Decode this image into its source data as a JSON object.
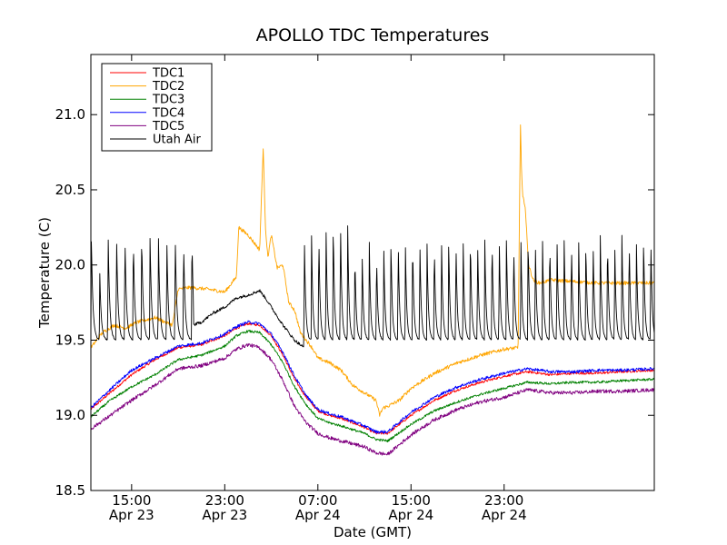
{
  "chart_data": {
    "type": "line",
    "title": "APOLLO TDC Temperatures",
    "xlabel": "Date (GMT)",
    "ylabel": "Temperature (C)",
    "xlim": [
      11.5,
      59.9
    ],
    "ylim": [
      18.5,
      21.4
    ],
    "x_unit": "hours since Apr 23 00:00 GMT",
    "x_ticks": [
      {
        "value": 15,
        "line1": "15:00",
        "line2": "Apr 23"
      },
      {
        "value": 23,
        "line1": "23:00",
        "line2": "Apr 23"
      },
      {
        "value": 31,
        "line1": "07:00",
        "line2": "Apr 24"
      },
      {
        "value": 39,
        "line1": "15:00",
        "line2": "Apr 24"
      },
      {
        "value": 47,
        "line1": "23:00",
        "line2": "Apr 24"
      }
    ],
    "y_ticks": [
      {
        "value": 18.5,
        "label": "18.5"
      },
      {
        "value": 19.0,
        "label": "19.0"
      },
      {
        "value": 19.5,
        "label": "19.5"
      },
      {
        "value": 20.0,
        "label": "20.0"
      },
      {
        "value": 20.5,
        "label": "20.5"
      },
      {
        "value": 21.0,
        "label": "21.0"
      }
    ],
    "legend_position": "top-left",
    "series": [
      {
        "name": "TDC1",
        "color": "#ff0000",
        "x": [
          11.5,
          13,
          15,
          17,
          19,
          21,
          23,
          24,
          25,
          26,
          27,
          28,
          29,
          30,
          31,
          32,
          33,
          35,
          36,
          37,
          39,
          41,
          43,
          45,
          47,
          49,
          51,
          53,
          55,
          57,
          59.9
        ],
        "y": [
          19.04,
          19.14,
          19.27,
          19.37,
          19.45,
          19.47,
          19.53,
          19.58,
          19.61,
          19.6,
          19.53,
          19.4,
          19.24,
          19.12,
          19.03,
          19.0,
          18.98,
          18.92,
          18.88,
          18.88,
          19.0,
          19.1,
          19.17,
          19.22,
          19.26,
          19.29,
          19.27,
          19.28,
          19.28,
          19.29,
          19.3
        ],
        "noise": 0.008
      },
      {
        "name": "TDC2",
        "color": "#ffa500",
        "x": [
          11.5,
          12.5,
          13.5,
          14.5,
          15.5,
          17,
          18.5,
          19,
          20,
          21.5,
          23,
          24,
          24.2,
          25,
          26,
          26.3,
          26.5,
          26.7,
          27,
          27.5,
          28,
          28.5,
          29,
          29.5,
          30,
          30.5,
          31,
          32,
          33,
          34,
          35,
          36,
          36.3,
          36.6,
          37,
          38,
          39,
          41,
          43,
          45,
          47,
          48.2,
          48.4,
          48.5,
          48.6,
          48.8,
          49.1,
          49.5,
          50,
          51,
          53,
          55,
          57,
          59.9
        ],
        "y": [
          19.45,
          19.55,
          19.6,
          19.58,
          19.62,
          19.65,
          19.6,
          19.84,
          19.85,
          19.84,
          19.82,
          19.92,
          20.25,
          20.2,
          20.1,
          20.78,
          20.25,
          20.05,
          20.2,
          19.98,
          20.0,
          19.75,
          19.7,
          19.55,
          19.5,
          19.45,
          19.38,
          19.35,
          19.3,
          19.2,
          19.15,
          19.1,
          19.0,
          19.05,
          19.06,
          19.1,
          19.18,
          19.28,
          19.35,
          19.4,
          19.44,
          19.45,
          20.95,
          20.6,
          20.45,
          20.4,
          20.0,
          19.9,
          19.88,
          19.9,
          19.89,
          19.88,
          19.88,
          19.88
        ],
        "noise": 0.012
      },
      {
        "name": "TDC3",
        "color": "#008000",
        "x": [
          11.5,
          13,
          15,
          17,
          19,
          21,
          23,
          24,
          25,
          26,
          27,
          28,
          29,
          30,
          31,
          32,
          33,
          35,
          36,
          37,
          39,
          41,
          43,
          45,
          47,
          49,
          51,
          53,
          55,
          57,
          59.9
        ],
        "y": [
          18.99,
          19.09,
          19.19,
          19.27,
          19.37,
          19.4,
          19.46,
          19.53,
          19.56,
          19.55,
          19.47,
          19.35,
          19.19,
          19.07,
          18.98,
          18.95,
          18.93,
          18.88,
          18.84,
          18.83,
          18.94,
          19.03,
          19.09,
          19.14,
          19.18,
          19.22,
          19.21,
          19.22,
          19.22,
          19.23,
          19.24
        ],
        "noise": 0.008
      },
      {
        "name": "TDC4",
        "color": "#0000ff",
        "x": [
          11.5,
          13,
          15,
          17,
          19,
          21,
          23,
          24,
          25,
          26,
          27,
          28,
          29,
          30,
          31,
          32,
          33,
          35,
          36,
          37,
          39,
          41,
          43,
          45,
          47,
          49,
          51,
          53,
          55,
          57,
          59.9
        ],
        "y": [
          19.05,
          19.16,
          19.3,
          19.38,
          19.46,
          19.48,
          19.54,
          19.59,
          19.62,
          19.61,
          19.54,
          19.42,
          19.26,
          19.13,
          19.04,
          19.01,
          18.99,
          18.93,
          18.89,
          18.89,
          19.02,
          19.12,
          19.19,
          19.24,
          19.28,
          19.31,
          19.29,
          19.29,
          19.3,
          19.3,
          19.31
        ],
        "noise": 0.01
      },
      {
        "name": "TDC5",
        "color": "#800080",
        "x": [
          11.5,
          13,
          15,
          17,
          19,
          21,
          23,
          24,
          25,
          26,
          27,
          28,
          29,
          30,
          31,
          32,
          33,
          35,
          36,
          37,
          39,
          41,
          43,
          45,
          47,
          49,
          51,
          53,
          55,
          57,
          59.9
        ],
        "y": [
          18.91,
          18.99,
          19.1,
          19.2,
          19.31,
          19.33,
          19.38,
          19.44,
          19.47,
          19.45,
          19.37,
          19.23,
          19.06,
          18.95,
          18.88,
          18.85,
          18.83,
          18.79,
          18.75,
          18.74,
          18.87,
          18.97,
          19.04,
          19.09,
          19.12,
          19.17,
          19.15,
          19.15,
          19.16,
          19.16,
          19.17
        ],
        "noise": 0.012
      },
      {
        "name": "Utah Air",
        "color": "#000000",
        "x": [
          11.5,
          20.3,
          21,
          22,
          23,
          24,
          25,
          26,
          26.5,
          27,
          28,
          29,
          29.8,
          60
        ],
        "y": [
          19.5,
          19.6,
          19.62,
          19.68,
          19.72,
          19.78,
          19.8,
          19.83,
          19.78,
          19.72,
          19.6,
          19.5,
          19.45,
          19.5
        ],
        "oscillation": {
          "phase1": {
            "x_from": 11.5,
            "x_to": 20.3,
            "period": 0.72,
            "base": 19.5,
            "peaks": [
              20.2,
              19.95,
              20.22,
              20.22,
              20.22,
              20.2,
              20.22,
              20.2,
              20.2,
              20.18,
              20.22,
              20.18,
              20.2
            ]
          },
          "phase3": {
            "x_from": 29.8,
            "x_to": 59.9,
            "period": 0.62,
            "base": 19.5,
            "peaks": [
              20.22,
              20.2,
              20.25,
              20.28,
              20.3,
              20.35,
              20.3,
              20.1,
              20.12,
              20.15,
              20.1,
              20.15,
              20.18,
              20.2,
              20.15,
              20.18,
              20.2,
              20.15,
              20.18,
              20.2,
              20.18,
              20.2,
              20.18,
              20.22,
              20.2,
              20.18,
              20.22,
              20.2,
              20.2,
              20.18,
              20.2,
              20.22,
              20.2,
              20.18,
              20.2,
              20.22,
              20.18,
              20.2,
              20.2,
              20.18,
              20.2,
              20.22,
              20.2,
              20.18,
              20.2,
              20.22,
              20.2,
              20.2,
              20.22
            ]
          }
        },
        "noise": 0.01
      }
    ]
  }
}
